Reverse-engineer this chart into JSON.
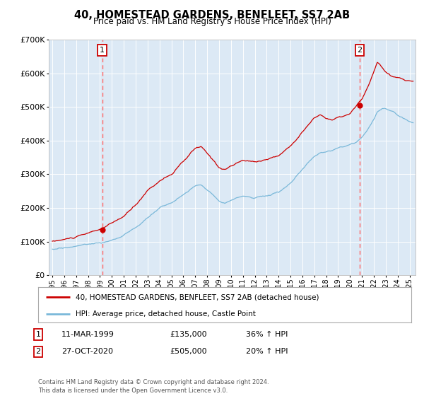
{
  "title": "40, HOMESTEAD GARDENS, BENFLEET, SS7 2AB",
  "subtitle": "Price paid vs. HM Land Registry's House Price Index (HPI)",
  "plot_bg_color": "#dce9f5",
  "red_line_color": "#cc0000",
  "blue_line_color": "#7ab8d9",
  "marker_color": "#cc0000",
  "vline_color": "#ff6666",
  "ylim": [
    0,
    700000
  ],
  "yticks": [
    0,
    100000,
    200000,
    300000,
    400000,
    500000,
    600000,
    700000
  ],
  "ytick_labels": [
    "£0",
    "£100K",
    "£200K",
    "£300K",
    "£400K",
    "£500K",
    "£600K",
    "£700K"
  ],
  "sale1_x": 1999.19,
  "sale1_y": 135000,
  "sale2_x": 2020.82,
  "sale2_y": 505000,
  "legend_red_label": "40, HOMESTEAD GARDENS, BENFLEET, SS7 2AB (detached house)",
  "legend_blue_label": "HPI: Average price, detached house, Castle Point",
  "table_row1": [
    "1",
    "11-MAR-1999",
    "£135,000",
    "36% ↑ HPI"
  ],
  "table_row2": [
    "2",
    "27-OCT-2020",
    "£505,000",
    "20% ↑ HPI"
  ],
  "footer": "Contains HM Land Registry data © Crown copyright and database right 2024.\nThis data is licensed under the Open Government Licence v3.0.",
  "xmin": 1994.7,
  "xmax": 2025.5
}
